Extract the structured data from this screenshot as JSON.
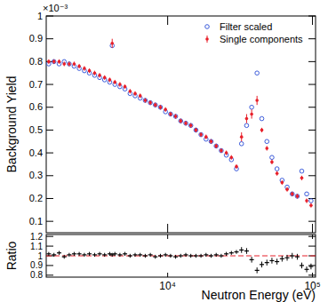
{
  "chart_data": [
    {
      "type": "scatter",
      "ylabel": "Background Yield",
      "annotation": "×10⁻³",
      "log": "x",
      "grid": false,
      "legend": "upper right",
      "tick_labels": "y",
      "xlim": [
        1450,
        105000
      ],
      "ylim": [
        0.05,
        1
      ],
      "xticks": [
        {
          "value": 10000,
          "label": "10⁴"
        },
        {
          "value": 100000,
          "label": "10⁵"
        }
      ],
      "yticks": [
        0.1,
        0.2,
        0.3,
        0.4,
        0.5,
        0.6,
        0.7,
        0.8,
        0.9,
        1
      ],
      "x": [
        1510,
        1640,
        1780,
        1930,
        2090,
        2260,
        2450,
        2660,
        2880,
        3130,
        3390,
        3670,
        3980,
        4140,
        4320,
        4680,
        5070,
        5500,
        5960,
        6460,
        7000,
        7590,
        8220,
        8910,
        9660,
        10470,
        11350,
        12300,
        13340,
        14450,
        15670,
        16980,
        18410,
        19950,
        21630,
        23440,
        25410,
        27540,
        29850,
        32360,
        35080,
        38020,
        41400,
        44670,
        48420,
        52480,
        56890,
        61660,
        66830,
        72440,
        78520,
        84330,
        91200,
        97720
      ],
      "series": [
        {
          "name": "Filter scaled",
          "color": "#3b5bdb",
          "marker": "circle-open",
          "values": [
            0.79,
            0.8,
            0.79,
            0.8,
            0.79,
            0.78,
            0.77,
            0.76,
            0.75,
            0.74,
            0.73,
            0.72,
            0.71,
            0.87,
            0.7,
            0.69,
            0.68,
            0.66,
            0.65,
            0.64,
            0.63,
            0.62,
            0.61,
            0.6,
            0.58,
            0.57,
            0.56,
            0.54,
            0.53,
            0.52,
            0.5,
            0.48,
            0.46,
            0.45,
            0.43,
            0.41,
            0.39,
            0.37,
            0.33,
            0.44,
            0.52,
            0.6,
            0.75,
            0.55,
            0.45,
            0.38,
            0.33,
            0.28,
            0.25,
            0.22,
            0.21,
            0.32,
            0.22,
            0.19
          ]
        },
        {
          "name": "Single components",
          "color": "#e8202a",
          "marker": "circle",
          "values": [
            0.8,
            0.8,
            0.8,
            0.79,
            0.79,
            0.79,
            0.78,
            0.77,
            0.76,
            0.75,
            0.74,
            0.73,
            0.72,
            0.88,
            0.71,
            0.7,
            0.69,
            0.67,
            0.66,
            0.65,
            0.63,
            0.62,
            0.61,
            0.6,
            0.59,
            0.57,
            0.56,
            0.54,
            0.53,
            0.52,
            0.5,
            0.48,
            0.47,
            0.45,
            0.43,
            0.41,
            0.4,
            0.38,
            0.34,
            0.47,
            0.55,
            0.57,
            0.63,
            0.5,
            0.42,
            0.36,
            0.31,
            0.27,
            0.24,
            0.22,
            0.21,
            0.29,
            0.19,
            0.17
          ],
          "errors": [
            0.01,
            0.01,
            0.01,
            0.01,
            0.01,
            0.01,
            0.01,
            0.01,
            0.01,
            0.01,
            0.01,
            0.01,
            0.01,
            0.02,
            0.01,
            0.01,
            0.01,
            0.01,
            0.01,
            0.01,
            0.01,
            0.01,
            0.01,
            0.01,
            0.01,
            0.01,
            0.01,
            0.01,
            0.01,
            0.01,
            0.01,
            0.01,
            0.01,
            0.01,
            0.01,
            0.01,
            0.01,
            0.01,
            0.01,
            0.02,
            0.02,
            0.02,
            0.02,
            0.01,
            0.01,
            0.01,
            0.01,
            0.01,
            0.01,
            0.01,
            0.01,
            0.01,
            0.01,
            0.01
          ]
        }
      ]
    },
    {
      "type": "scatter",
      "ylabel": "Ratio",
      "xlabel": "Neutron Energy (eV)",
      "log": "x",
      "grid": false,
      "reference": 1,
      "xlim": [
        1450,
        105000
      ],
      "ylim": [
        0.78,
        1.22
      ],
      "xticks": [
        {
          "value": 10000,
          "label": "10⁴"
        },
        {
          "value": 100000,
          "label": "10⁵"
        }
      ],
      "yticks": [
        0.8,
        0.9,
        1,
        1.1,
        1.2
      ],
      "x": [
        1510,
        1640,
        1780,
        1930,
        2090,
        2260,
        2450,
        2660,
        2880,
        3130,
        3390,
        3670,
        3980,
        4140,
        4320,
        4680,
        5070,
        5500,
        5960,
        6460,
        7000,
        7590,
        8220,
        8910,
        9660,
        10470,
        11350,
        12300,
        13340,
        14450,
        15670,
        16980,
        18410,
        19950,
        21630,
        23440,
        25410,
        27540,
        29850,
        32360,
        35080,
        38020,
        41400,
        44670,
        48420,
        52480,
        56890,
        61660,
        66830,
        72440,
        78520,
        84330,
        91200,
        97720
      ],
      "series": [
        {
          "color": "#000000",
          "marker": "cross",
          "values": [
            1.02,
            1.01,
            1.03,
            0.99,
            1.01,
            1.02,
            1.02,
            1.01,
            1.02,
            1.01,
            1.02,
            1.01,
            1.02,
            1.01,
            1.02,
            1.01,
            1.02,
            1.0,
            1.01,
            1.01,
            1.0,
            1.01,
            0.99,
            1.0,
            1.01,
            1.0,
            0.99,
            1.0,
            1.01,
            1.0,
            1.0,
            1.0,
            1.01,
            1.0,
            1.01,
            1.0,
            1.02,
            1.03,
            1.04,
            1.06,
            1.05,
            0.96,
            0.85,
            0.91,
            0.93,
            0.95,
            0.94,
            0.97,
            0.98,
            1.0,
            0.99,
            0.9,
            0.86,
            0.89
          ],
          "errors": [
            0.02,
            0.02,
            0.02,
            0.02,
            0.02,
            0.02,
            0.02,
            0.02,
            0.02,
            0.02,
            0.02,
            0.02,
            0.02,
            0.02,
            0.02,
            0.02,
            0.02,
            0.02,
            0.02,
            0.02,
            0.02,
            0.02,
            0.02,
            0.02,
            0.02,
            0.02,
            0.02,
            0.02,
            0.02,
            0.02,
            0.02,
            0.02,
            0.02,
            0.02,
            0.02,
            0.02,
            0.02,
            0.02,
            0.02,
            0.03,
            0.03,
            0.03,
            0.03,
            0.03,
            0.03,
            0.03,
            0.03,
            0.03,
            0.03,
            0.03,
            0.03,
            0.03,
            0.03,
            0.03
          ]
        }
      ]
    }
  ]
}
